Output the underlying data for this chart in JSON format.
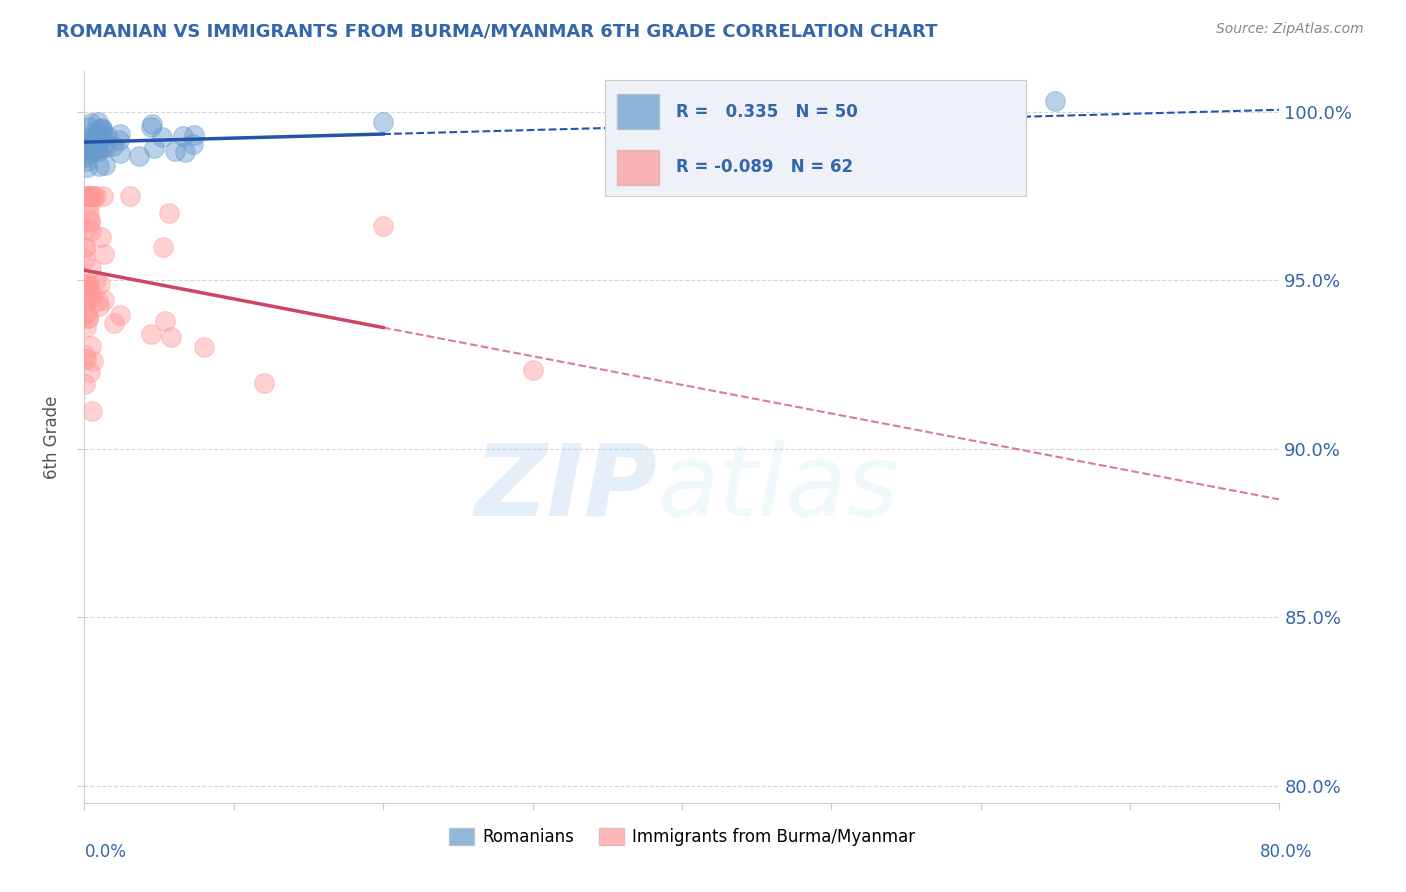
{
  "title": "ROMANIAN VS IMMIGRANTS FROM BURMA/MYANMAR 6TH GRADE CORRELATION CHART",
  "source": "Source: ZipAtlas.com",
  "ylabel": "6th Grade",
  "y_ticks": [
    80.0,
    85.0,
    90.0,
    95.0,
    100.0
  ],
  "x_min": 0.0,
  "x_max": 80.0,
  "y_min": 79.5,
  "y_max": 101.2,
  "r_romanian": 0.335,
  "n_romanian": 50,
  "r_burma": -0.089,
  "n_burma": 62,
  "blue_color": "#6699CC",
  "pink_color": "#FF9999",
  "blue_line_color": "#2255AA",
  "pink_line_color": "#CC4466",
  "title_color": "#3366AA",
  "axis_label_color": "#555555",
  "tick_color": "#3366AA",
  "source_color": "#888888",
  "legend_box_color": "#EEF2F8",
  "grid_color": "#CCCCCC",
  "watermark_zip_color": "#AACCEE",
  "watermark_atlas_color": "#AADDEE"
}
